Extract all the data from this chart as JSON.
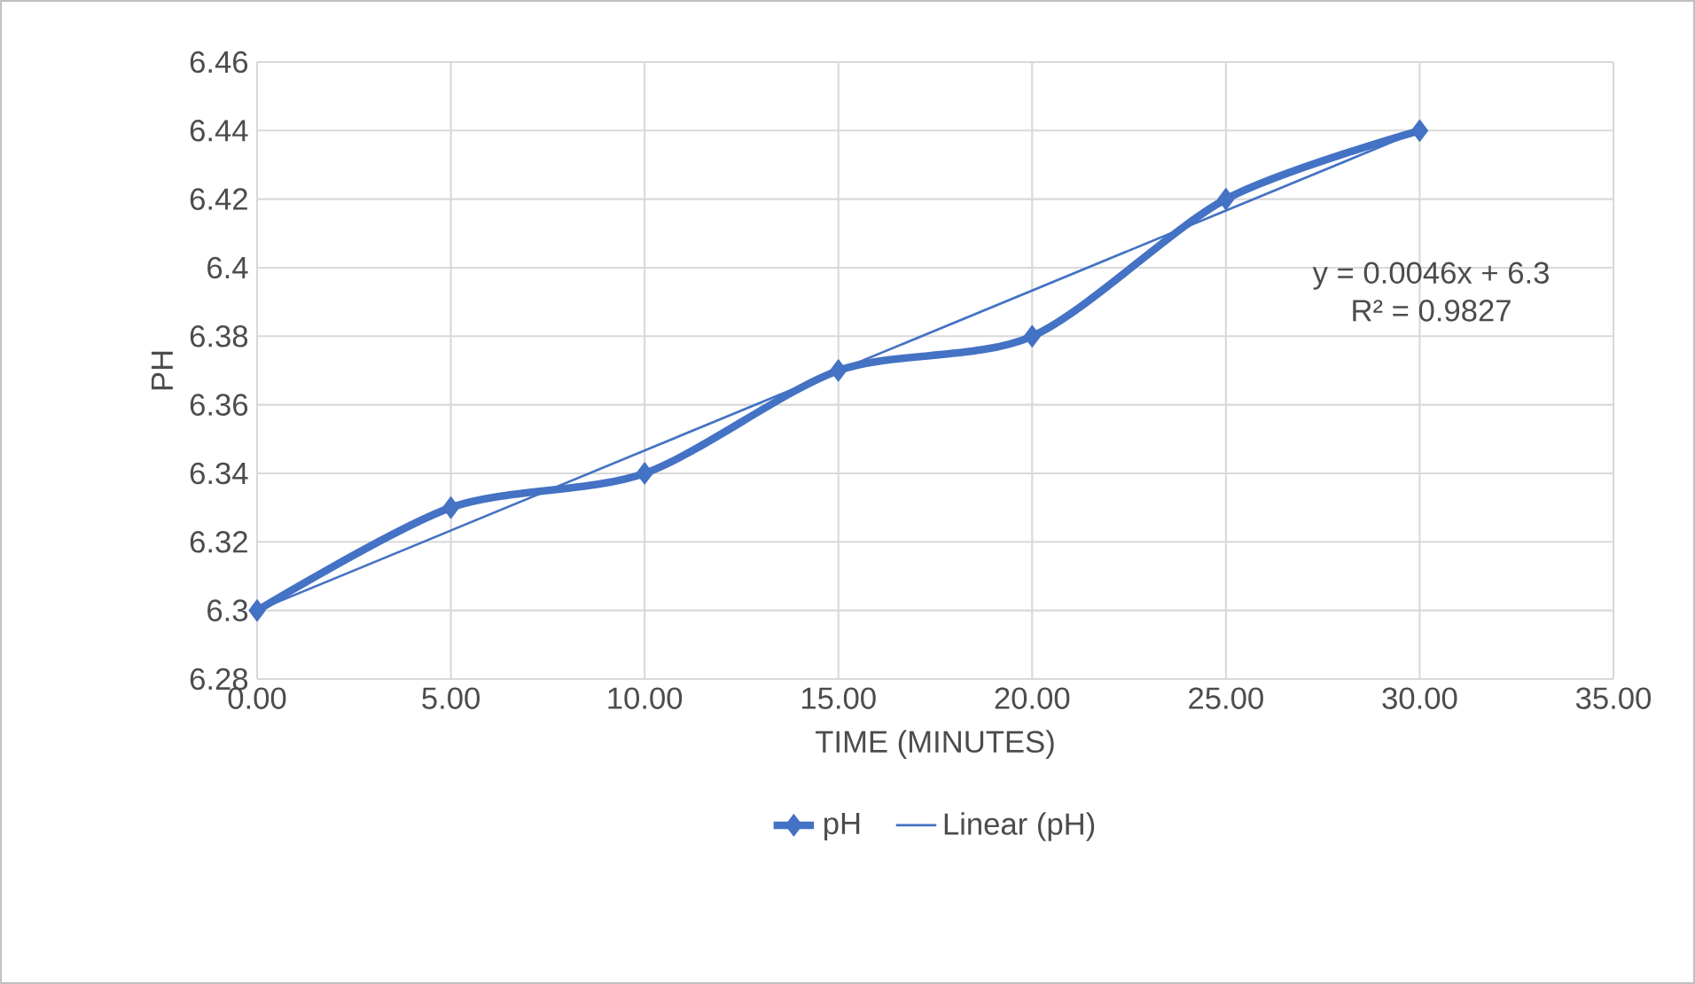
{
  "chart_data": {
    "type": "line",
    "xlabel": "TIME (MINUTES)",
    "ylabel": "PH",
    "x": [
      0,
      5,
      10,
      15,
      20,
      25,
      30
    ],
    "series": [
      {
        "name": "pH",
        "color": "#4472c4",
        "marker": "diamond",
        "values": [
          6.3,
          6.33,
          6.34,
          6.37,
          6.38,
          6.42,
          6.44
        ]
      },
      {
        "name": "Linear (pH)",
        "color": "#4472c4",
        "marker": "none",
        "x": [
          0,
          30
        ],
        "values": [
          6.3,
          6.44
        ]
      }
    ],
    "xlim": [
      0,
      35
    ],
    "xticks": [
      {
        "value": 0,
        "label": "0.00"
      },
      {
        "value": 5,
        "label": "5.00"
      },
      {
        "value": 10,
        "label": "10.00"
      },
      {
        "value": 15,
        "label": "15.00"
      },
      {
        "value": 20,
        "label": "20.00"
      },
      {
        "value": 25,
        "label": "25.00"
      },
      {
        "value": 30,
        "label": "30.00"
      },
      {
        "value": 35,
        "label": "35.00"
      }
    ],
    "ylim": [
      6.28,
      6.46
    ],
    "yticks": [
      6.28,
      6.3,
      6.32,
      6.34,
      6.36,
      6.38,
      6.4,
      6.42,
      6.44,
      6.46
    ],
    "grid": true,
    "legend": "bottom",
    "annotations": [
      "y = 0.0046x + 6.3",
      "R² = 0.9827"
    ]
  }
}
